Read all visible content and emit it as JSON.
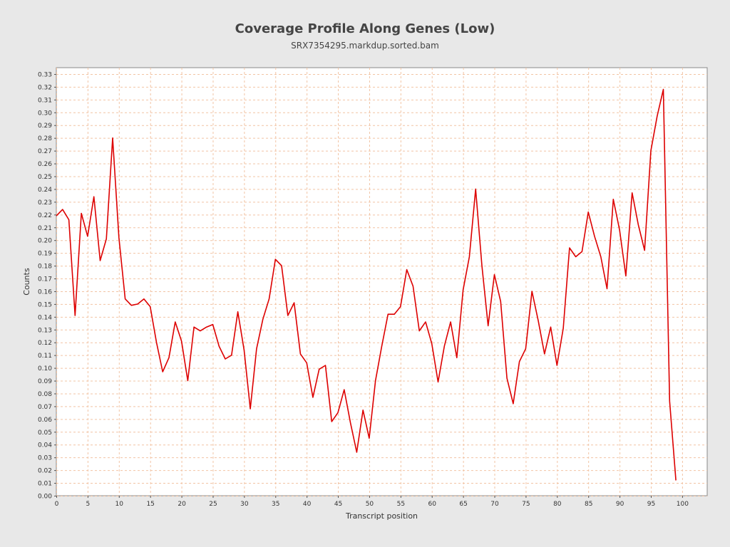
{
  "chart_data": {
    "type": "line",
    "title": "Coverage Profile Along Genes (Low)",
    "subtitle": "SRX7354295.markdup.sorted.bam",
    "xlabel": "Transcript position",
    "ylabel": "Counts",
    "xlim": [
      0,
      104
    ],
    "ylim": [
      0,
      0.335
    ],
    "xticks": [
      0,
      5,
      10,
      15,
      20,
      25,
      30,
      35,
      40,
      45,
      50,
      55,
      60,
      65,
      70,
      75,
      80,
      85,
      90,
      95,
      100
    ],
    "yticks": [
      0.0,
      0.01,
      0.02,
      0.03,
      0.04,
      0.05,
      0.06,
      0.07,
      0.08,
      0.09,
      0.1,
      0.11,
      0.12,
      0.13,
      0.14,
      0.15,
      0.16,
      0.17,
      0.18,
      0.19,
      0.2,
      0.21,
      0.22,
      0.23,
      0.24,
      0.25,
      0.26,
      0.27,
      0.28,
      0.29,
      0.3,
      0.31,
      0.32,
      0.33
    ],
    "grid": true,
    "series": [
      {
        "color": "#dd0000",
        "x": [
          0,
          1,
          2,
          3,
          4,
          5,
          6,
          7,
          8,
          9,
          10,
          11,
          12,
          13,
          14,
          15,
          16,
          17,
          18,
          19,
          20,
          21,
          22,
          23,
          24,
          25,
          26,
          27,
          28,
          29,
          30,
          31,
          32,
          33,
          34,
          35,
          36,
          37,
          38,
          39,
          40,
          41,
          42,
          43,
          44,
          45,
          46,
          47,
          48,
          49,
          50,
          51,
          52,
          53,
          54,
          55,
          56,
          57,
          58,
          59,
          60,
          61,
          62,
          63,
          64,
          65,
          66,
          67,
          68,
          69,
          70,
          71,
          72,
          73,
          74,
          75,
          76,
          77,
          78,
          79,
          80,
          81,
          82,
          83,
          84,
          85,
          86,
          87,
          88,
          89,
          90,
          91,
          92,
          93,
          94,
          95,
          96,
          97,
          98,
          99
        ],
        "values": [
          0.219,
          0.224,
          0.216,
          0.141,
          0.221,
          0.203,
          0.234,
          0.184,
          0.201,
          0.28,
          0.202,
          0.154,
          0.149,
          0.15,
          0.154,
          0.148,
          0.12,
          0.097,
          0.108,
          0.136,
          0.121,
          0.09,
          0.132,
          0.129,
          0.132,
          0.134,
          0.117,
          0.107,
          0.11,
          0.144,
          0.114,
          0.068,
          0.115,
          0.138,
          0.154,
          0.185,
          0.18,
          0.141,
          0.151,
          0.111,
          0.104,
          0.077,
          0.099,
          0.102,
          0.058,
          0.065,
          0.083,
          0.057,
          0.034,
          0.067,
          0.045,
          0.09,
          0.117,
          0.142,
          0.142,
          0.148,
          0.177,
          0.164,
          0.129,
          0.136,
          0.119,
          0.089,
          0.117,
          0.136,
          0.108,
          0.161,
          0.187,
          0.24,
          0.18,
          0.133,
          0.173,
          0.152,
          0.092,
          0.072,
          0.105,
          0.115,
          0.16,
          0.137,
          0.111,
          0.132,
          0.102,
          0.131,
          0.194,
          0.187,
          0.191,
          0.222,
          0.203,
          0.187,
          0.162,
          0.232,
          0.208,
          0.172,
          0.237,
          0.212,
          0.192,
          0.27,
          0.297,
          0.318,
          0.074,
          0.012
        ]
      }
    ]
  }
}
